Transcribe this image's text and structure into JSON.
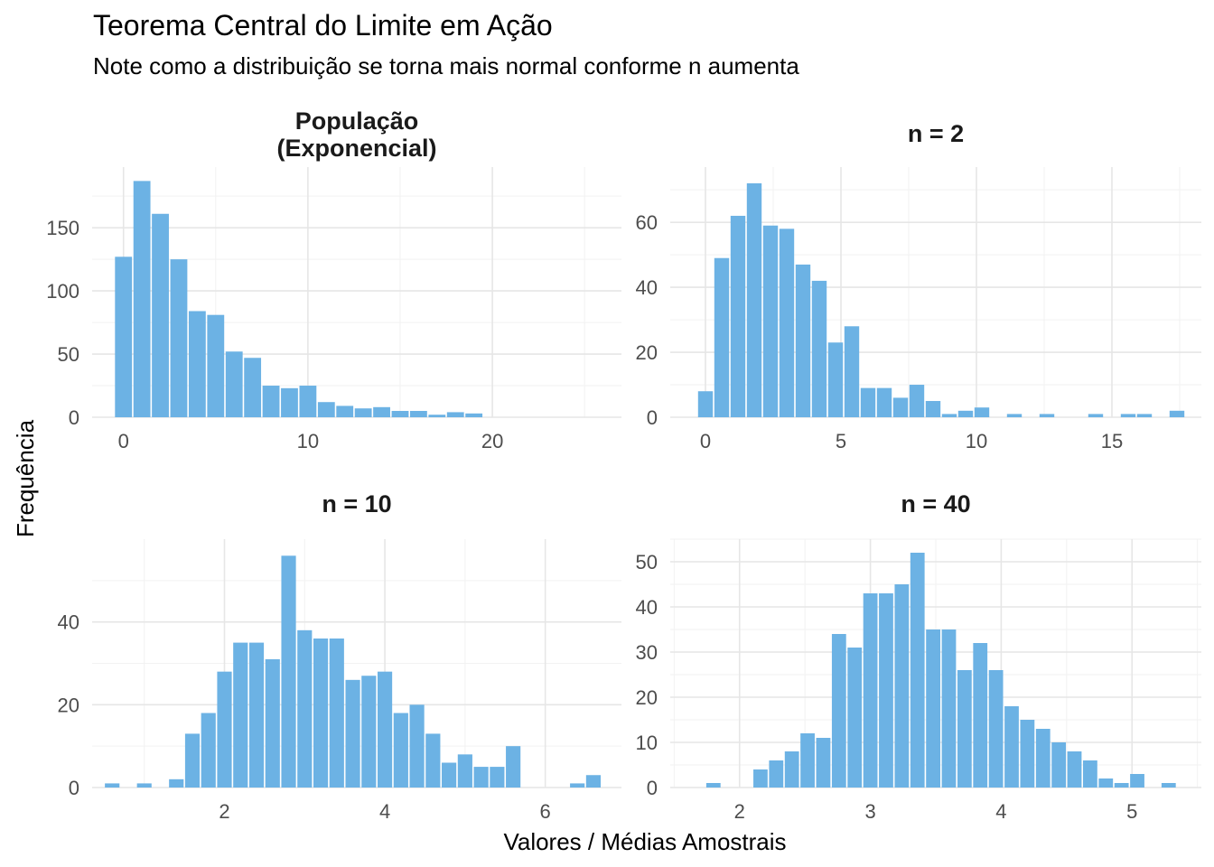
{
  "title": "Teorema Central do Limite em Ação",
  "subtitle": "Note como a distribuição se torna mais normal conforme n aumenta",
  "xlabel": "Valores / Médias Amostrais",
  "ylabel": "Frequência",
  "colors": {
    "bar": "#6CB2E4",
    "grid_major": "#E6E6E6",
    "grid_minor": "#F2F2F2",
    "text": "#4D4D4D"
  },
  "chart_data": [
    {
      "type": "bar",
      "title": "População\n(Exponencial)",
      "bin_width": 1.0,
      "x": [
        0,
        1,
        2,
        3,
        4,
        5,
        6,
        7,
        8,
        9,
        10,
        11,
        12,
        13,
        14,
        15,
        16,
        17,
        18,
        19
      ],
      "values": [
        127,
        187,
        161,
        125,
        84,
        81,
        52,
        47,
        25,
        23,
        25,
        12,
        9,
        7,
        8,
        5,
        5,
        2,
        4,
        3
      ],
      "xlim": [
        -1.7,
        27.0
      ],
      "ylim": [
        0,
        198
      ],
      "xticks": [
        0,
        10,
        20
      ],
      "yticks": [
        0,
        50,
        100,
        150
      ],
      "grid": true
    },
    {
      "type": "bar",
      "title": "n = 2",
      "bin_width": 0.6,
      "x": [
        0,
        0.6,
        1.2,
        1.8,
        2.4,
        3.0,
        3.6,
        4.2,
        4.8,
        5.4,
        6.0,
        6.6,
        7.2,
        7.8,
        8.4,
        9.0,
        9.6,
        10.2,
        11.4,
        12.6,
        14.4,
        15.6,
        16.2,
        17.4
      ],
      "values": [
        8,
        49,
        62,
        72,
        59,
        58,
        47,
        42,
        23,
        28,
        9,
        9,
        6,
        10,
        5,
        1,
        2,
        3,
        1,
        1,
        1,
        1,
        1,
        2
      ],
      "xlim": [
        -1.3,
        18.3
      ],
      "ylim": [
        0,
        77
      ],
      "xticks": [
        0,
        5,
        10,
        15
      ],
      "yticks": [
        0,
        20,
        40,
        60
      ],
      "grid": true
    },
    {
      "type": "bar",
      "title": "n = 10",
      "bin_width": 0.2,
      "x": [
        0.6,
        1.0,
        1.4,
        1.6,
        1.8,
        2.0,
        2.2,
        2.4,
        2.6,
        2.8,
        3.0,
        3.2,
        3.4,
        3.6,
        3.8,
        4.0,
        4.2,
        4.4,
        4.6,
        4.8,
        5.0,
        5.2,
        5.4,
        5.6,
        6.4,
        6.6
      ],
      "values": [
        1,
        1,
        2,
        13,
        18,
        28,
        35,
        35,
        31,
        56,
        38,
        36,
        36,
        26,
        27,
        28,
        18,
        20,
        13,
        6,
        8,
        5,
        5,
        10,
        1,
        3
      ],
      "xlim": [
        0.35,
        6.95
      ],
      "ylim": [
        0,
        60
      ],
      "xticks": [
        2,
        4,
        6
      ],
      "yticks": [
        0,
        20,
        40
      ],
      "grid": true
    },
    {
      "type": "bar",
      "title": "n = 40",
      "bin_width": 0.12,
      "x": [
        1.8,
        2.16,
        2.28,
        2.4,
        2.52,
        2.64,
        2.76,
        2.88,
        3.0,
        3.12,
        3.24,
        3.36,
        3.48,
        3.6,
        3.72,
        3.84,
        3.96,
        4.08,
        4.2,
        4.32,
        4.44,
        4.56,
        4.68,
        4.8,
        4.92,
        5.04,
        5.28
      ],
      "values": [
        1,
        4,
        6,
        8,
        12,
        11,
        34,
        31,
        43,
        43,
        45,
        52,
        35,
        35,
        26,
        32,
        26,
        18,
        15,
        13,
        10,
        8,
        6,
        2,
        1,
        3,
        1
      ],
      "xlim": [
        1.47,
        5.53
      ],
      "ylim": [
        0,
        55
      ],
      "xticks": [
        2,
        3,
        4,
        5
      ],
      "yticks": [
        0,
        10,
        20,
        30,
        40,
        50
      ],
      "grid": true
    }
  ]
}
